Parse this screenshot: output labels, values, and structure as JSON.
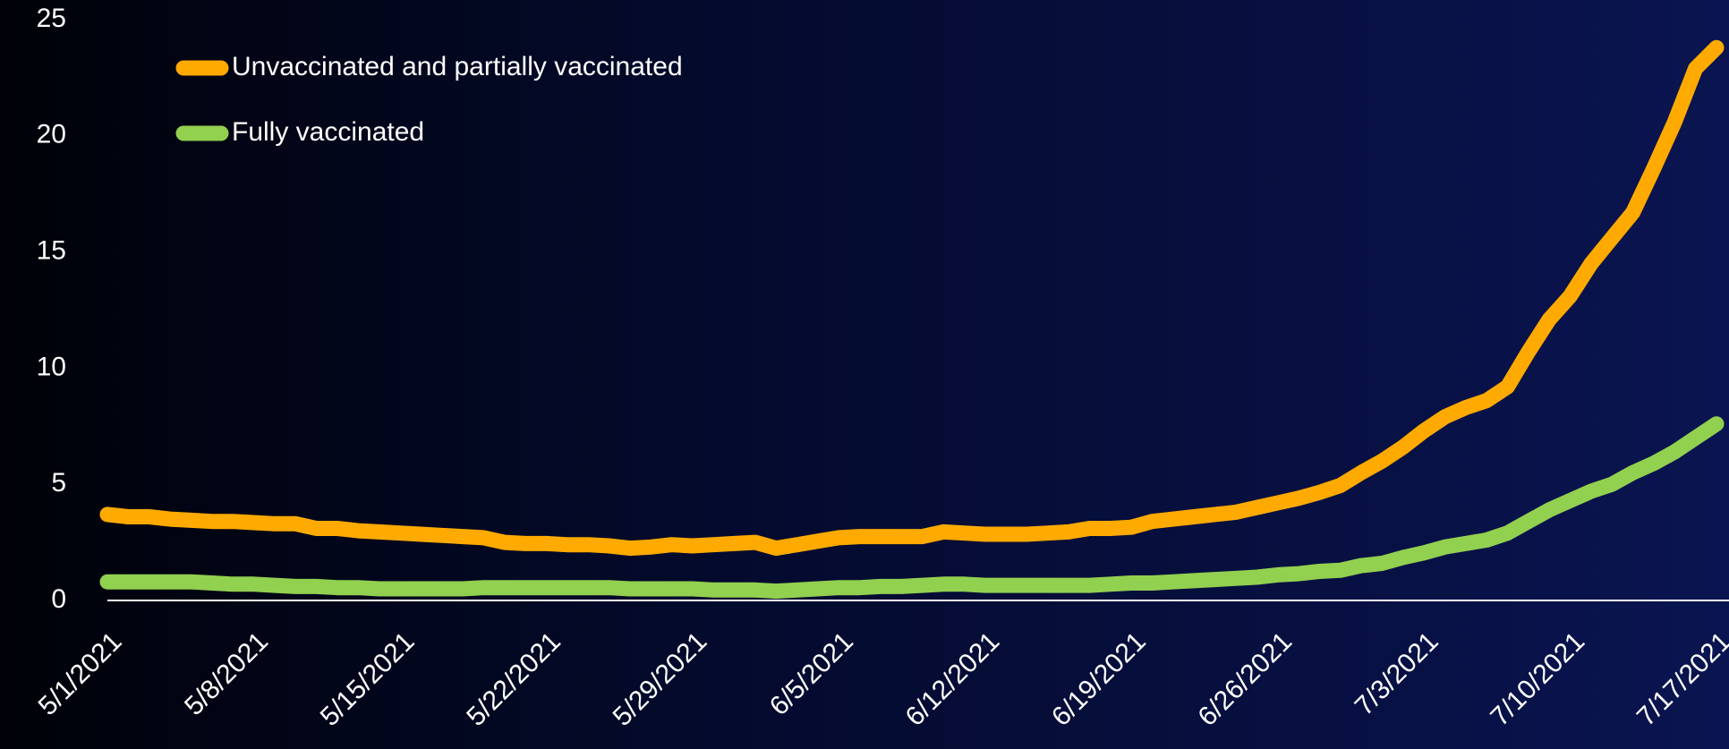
{
  "chart_data": {
    "type": "line",
    "categories": [
      "5/1/2021",
      null,
      null,
      null,
      null,
      null,
      null,
      "5/8/2021",
      null,
      null,
      null,
      null,
      null,
      null,
      "5/15/2021",
      null,
      null,
      null,
      null,
      null,
      null,
      "5/22/2021",
      null,
      null,
      null,
      null,
      null,
      null,
      "5/29/2021",
      null,
      null,
      null,
      null,
      null,
      null,
      "6/5/2021",
      null,
      null,
      null,
      null,
      null,
      null,
      "6/12/2021",
      null,
      null,
      null,
      null,
      null,
      null,
      "6/19/2021",
      null,
      null,
      null,
      null,
      null,
      null,
      "6/26/2021",
      null,
      null,
      null,
      null,
      null,
      null,
      "7/3/2021",
      null,
      null,
      null,
      null,
      null,
      null,
      "7/10/2021",
      null,
      null,
      null,
      null,
      null,
      null,
      "7/17/2021"
    ],
    "series": [
      {
        "name": "Unvaccinated and partially vaccinated",
        "color": "#ffaa00",
        "values": [
          3.7,
          3.6,
          3.6,
          3.5,
          3.45,
          3.4,
          3.4,
          3.35,
          3.3,
          3.3,
          3.1,
          3.1,
          3.0,
          2.95,
          2.9,
          2.85,
          2.8,
          2.75,
          2.7,
          2.5,
          2.45,
          2.45,
          2.4,
          2.4,
          2.35,
          2.25,
          2.3,
          2.4,
          2.35,
          2.4,
          2.45,
          2.5,
          2.25,
          2.4,
          2.55,
          2.7,
          2.75,
          2.75,
          2.75,
          2.75,
          2.95,
          2.9,
          2.85,
          2.85,
          2.85,
          2.9,
          2.95,
          3.1,
          3.1,
          3.15,
          3.4,
          3.5,
          3.6,
          3.7,
          3.8,
          4.0,
          4.2,
          4.4,
          4.65,
          4.95,
          5.5,
          6.0,
          6.6,
          7.3,
          7.9,
          8.3,
          8.6,
          9.2,
          10.7,
          12.1,
          13.1,
          14.5,
          15.6,
          16.7,
          18.6,
          20.6,
          22.9,
          23.8
        ]
      },
      {
        "name": "Fully vaccinated",
        "color": "#92d050",
        "values": [
          0.8,
          0.8,
          0.8,
          0.8,
          0.8,
          0.75,
          0.7,
          0.7,
          0.65,
          0.6,
          0.6,
          0.55,
          0.55,
          0.5,
          0.5,
          0.5,
          0.5,
          0.5,
          0.55,
          0.55,
          0.55,
          0.55,
          0.55,
          0.55,
          0.55,
          0.5,
          0.5,
          0.5,
          0.5,
          0.45,
          0.45,
          0.45,
          0.4,
          0.45,
          0.5,
          0.55,
          0.55,
          0.6,
          0.6,
          0.65,
          0.7,
          0.7,
          0.65,
          0.65,
          0.65,
          0.65,
          0.65,
          0.65,
          0.7,
          0.75,
          0.75,
          0.8,
          0.85,
          0.9,
          0.95,
          1.0,
          1.1,
          1.15,
          1.25,
          1.3,
          1.5,
          1.6,
          1.85,
          2.05,
          2.3,
          2.45,
          2.6,
          2.9,
          3.4,
          3.9,
          4.3,
          4.7,
          5.0,
          5.5,
          5.9,
          6.4,
          7.0,
          7.6
        ]
      }
    ],
    "ylim": [
      0,
      25
    ],
    "yticks": [
      0,
      5,
      10,
      15,
      20,
      25
    ],
    "legend": "upper left"
  }
}
